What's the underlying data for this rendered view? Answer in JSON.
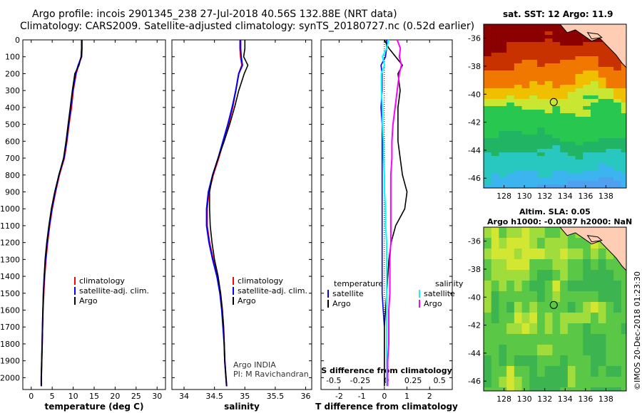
{
  "header": {
    "title_line1": "Argo profile: incois 2901345_238 27-Jul-2018 40.56S 132.88E (NRT data)",
    "title_line2": "Climatology: CARS2009. Satellite-adjusted climatology: synTS_20180727.nc (0.52d earlier)"
  },
  "sst_map": {
    "title": "sat. SST: 12 Argo: 11.9"
  },
  "sla_map": {
    "title_line1": "Altim. SLA: 0.05",
    "title_line2": "Argo h1000: -0.0087 h2000: NaN"
  },
  "credit": "©IMOS 20-Dec-2018 01:23:30",
  "colors": {
    "climatology": "#ff0000",
    "satellite": "#0000ff",
    "argo": "#000000",
    "t_sat": "#00ffff",
    "s_sat": "#00ffff",
    "s_argo": "#ff00ff"
  },
  "chart_data": [
    {
      "type": "line",
      "xlabel": "temperature (deg C)",
      "ylabel": "",
      "xlim": [
        -2,
        32
      ],
      "ylim": [
        2070,
        0
      ],
      "xticks": [
        "0",
        "5",
        "10",
        "15",
        "20",
        "25",
        "30"
      ],
      "yticks": [
        "0",
        "100",
        "200",
        "300",
        "400",
        "500",
        "600",
        "700",
        "800",
        "900",
        "1000",
        "1100",
        "1200",
        "1300",
        "1400",
        "1500",
        "1600",
        "1700",
        "1800",
        "1900",
        "2000"
      ],
      "legend": {
        "position": "lower-right",
        "entries": [
          "climatology",
          "satellite-adj. clim.",
          "Argo"
        ]
      },
      "series": [
        {
          "name": "climatology",
          "y": [
            0,
            50,
            100,
            150,
            200,
            300,
            400,
            500,
            600,
            700,
            800,
            900,
            1000,
            1100,
            1200,
            1300,
            1400,
            1500,
            1600,
            1700,
            1800,
            1900,
            2000,
            2050
          ],
          "x": [
            12.0,
            12.0,
            11.9,
            11.3,
            10.7,
            10.0,
            9.6,
            9.0,
            8.5,
            7.9,
            6.7,
            5.8,
            5.0,
            4.4,
            3.9,
            3.5,
            3.2,
            3.0,
            2.8,
            2.7,
            2.6,
            2.5,
            2.4,
            2.4
          ]
        },
        {
          "name": "satellite-adj. clim.",
          "y": [
            0,
            50,
            100,
            150,
            200,
            300,
            400,
            500,
            600,
            700,
            800,
            900,
            1000,
            1100,
            1200,
            1300,
            1400,
            1500,
            1600,
            1700,
            1800,
            1900,
            2000,
            2050
          ],
          "x": [
            12.1,
            12.1,
            12.0,
            11.2,
            10.6,
            9.9,
            9.4,
            8.9,
            8.4,
            7.8,
            6.6,
            5.7,
            4.9,
            4.3,
            3.8,
            3.4,
            3.1,
            2.9,
            2.8,
            2.7,
            2.6,
            2.5,
            2.4,
            2.4
          ]
        },
        {
          "name": "Argo",
          "y": [
            0,
            50,
            100,
            150,
            200,
            300,
            400,
            500,
            600,
            700,
            800,
            900,
            1000,
            1100,
            1200,
            1300,
            1400,
            1500,
            1600,
            1700,
            1800,
            1900,
            2000,
            2050
          ],
          "x": [
            12.0,
            12.0,
            11.9,
            11.4,
            10.4,
            9.8,
            9.3,
            8.8,
            8.3,
            7.7,
            6.6,
            5.6,
            4.8,
            4.2,
            3.7,
            3.3,
            3.1,
            2.9,
            2.8,
            2.7,
            2.6,
            2.5,
            2.4,
            2.4
          ]
        }
      ]
    },
    {
      "type": "line",
      "xlabel": "salinity",
      "xlim": [
        33.8,
        36.1
      ],
      "ylim": [
        2070,
        0
      ],
      "xticks": [
        "34",
        "34.5",
        "35",
        "35.5",
        "36"
      ],
      "legend": {
        "position": "lower-right",
        "entries": [
          "climatology",
          "satellite-adj. clim.",
          "Argo"
        ]
      },
      "annotation": [
        "Argo INDIA",
        "PI: M Ravichandran"
      ],
      "series": [
        {
          "name": "climatology",
          "y": [
            0,
            50,
            100,
            150,
            200,
            300,
            400,
            500,
            600,
            700,
            800,
            900,
            1000,
            1100,
            1200,
            1300,
            1400,
            1500,
            1600,
            1700,
            1800,
            1900,
            2000,
            2050
          ],
          "x": [
            34.92,
            34.92,
            34.93,
            34.95,
            34.9,
            34.85,
            34.8,
            34.73,
            34.65,
            34.57,
            34.48,
            34.41,
            34.38,
            34.38,
            34.42,
            34.48,
            34.55,
            34.6,
            34.63,
            34.65,
            34.66,
            34.67,
            34.69,
            34.7
          ]
        },
        {
          "name": "satellite-adj. clim.",
          "y": [
            0,
            50,
            100,
            150,
            200,
            300,
            400,
            500,
            600,
            700,
            800,
            900,
            1000,
            1100,
            1200,
            1300,
            1400,
            1500,
            1600,
            1700,
            1800,
            1900,
            2000,
            2050
          ],
          "x": [
            34.93,
            34.93,
            34.94,
            34.96,
            34.9,
            34.85,
            34.79,
            34.72,
            34.64,
            34.56,
            34.47,
            34.4,
            34.37,
            34.37,
            34.41,
            34.47,
            34.54,
            34.59,
            34.62,
            34.64,
            34.66,
            34.67,
            34.69,
            34.7
          ]
        },
        {
          "name": "Argo",
          "y": [
            0,
            50,
            100,
            150,
            200,
            300,
            400,
            500,
            600,
            700,
            800,
            900,
            1000,
            1100,
            1200,
            1300,
            1400,
            1500,
            1600,
            1700,
            1800,
            1900,
            2000,
            2050
          ],
          "x": [
            35.0,
            35.0,
            34.98,
            35.05,
            34.99,
            34.9,
            34.83,
            34.75,
            34.66,
            34.56,
            34.47,
            34.42,
            34.42,
            34.43,
            34.46,
            34.5,
            34.56,
            34.6,
            34.63,
            34.65,
            34.66,
            34.67,
            34.69,
            34.7
          ]
        }
      ]
    },
    {
      "type": "line",
      "xlabel": "T difference from climatology",
      "xlabel2": "S difference from climatology",
      "xlim": [
        -2.8,
        3.0
      ],
      "ylim": [
        2070,
        0
      ],
      "xticks": [
        "-2",
        "-1",
        "0",
        "1",
        "2"
      ],
      "xticks2": [
        "-0.5",
        "-0.25",
        "0",
        "0.25",
        "0.5"
      ],
      "legend": {
        "temperature_header": "temperature",
        "salinity_header": "salinity",
        "entries_t": [
          "satellite",
          "Argo"
        ],
        "entries_s": [
          "satellite",
          "Argo"
        ]
      },
      "series": [
        {
          "name": "T satellite",
          "y": [
            0,
            50,
            100,
            150,
            200,
            300,
            400,
            500,
            600,
            700,
            800,
            900,
            1000,
            1100,
            1200,
            1300,
            1400,
            1500,
            1600,
            1700,
            1800,
            1900,
            2000,
            2050
          ],
          "x": [
            0.1,
            0.1,
            0.05,
            -0.15,
            -0.1,
            -0.1,
            -0.15,
            -0.1,
            -0.1,
            -0.1,
            -0.1,
            -0.1,
            -0.1,
            -0.1,
            -0.1,
            -0.1,
            -0.1,
            -0.1,
            -0.05,
            0.0,
            0.0,
            0.0,
            0.0,
            0.0
          ]
        },
        {
          "name": "T Argo",
          "y": [
            0,
            50,
            100,
            150,
            200,
            300,
            400,
            500,
            600,
            700,
            800,
            900,
            1000,
            1100,
            1200,
            1300,
            1400,
            1500,
            1600,
            1700,
            1800,
            1900,
            2000,
            2050
          ],
          "x": [
            0.0,
            0.2,
            0.5,
            0.8,
            0.6,
            0.7,
            0.6,
            0.6,
            0.6,
            0.7,
            0.8,
            1.0,
            0.9,
            0.5,
            0.3,
            0.2,
            0.15,
            0.1,
            0.05,
            0.0,
            0.0,
            0.0,
            0.0,
            0.0
          ]
        },
        {
          "name": "S satellite",
          "y": [
            0,
            50,
            100,
            150,
            200,
            300,
            400,
            500,
            600,
            700,
            800,
            900,
            1000,
            1100,
            1200,
            1300,
            1400,
            1500,
            1600,
            1700,
            1800,
            1900,
            2000,
            2050
          ],
          "x": [
            0.02,
            0.0,
            -0.04,
            -0.02,
            -0.05,
            -0.05,
            -0.04,
            -0.04,
            -0.03,
            -0.03,
            -0.02,
            -0.02,
            -0.01,
            -0.01,
            0.0,
            0.0,
            0.0,
            0.0,
            0.0,
            0.0,
            0.0,
            0.0,
            0.0,
            0.0
          ]
        },
        {
          "name": "S Argo",
          "y": [
            0,
            50,
            100,
            150,
            200,
            300,
            400,
            500,
            600,
            700,
            800,
            900,
            1000,
            1100,
            1200,
            1300,
            1400,
            1500,
            1600,
            1700,
            1800,
            1900,
            2000,
            2050
          ],
          "x": [
            0.1,
            0.13,
            0.12,
            0.14,
            0.12,
            0.1,
            0.08,
            0.06,
            0.05,
            0.05,
            0.04,
            0.04,
            0.04,
            0.04,
            0.04,
            0.03,
            0.03,
            0.03,
            0.02,
            0.02,
            0.02,
            0.01,
            0.01,
            0.01
          ]
        }
      ]
    },
    {
      "type": "heatmap",
      "title": "sat. SST: 12 Argo: 11.9",
      "xlim": [
        126,
        140
      ],
      "ylim": [
        -46.7,
        -35
      ],
      "xticks": [
        "128",
        "130",
        "132",
        "134",
        "136",
        "138"
      ],
      "yticks": [
        "-36",
        "-38",
        "-40",
        "-42",
        "-44",
        "-46"
      ],
      "marker": {
        "lon": 132.88,
        "lat": -40.56
      }
    },
    {
      "type": "heatmap",
      "title": "Altim. SLA: 0.05",
      "xlim": [
        126,
        140
      ],
      "ylim": [
        -46.7,
        -35
      ],
      "xticks": [
        "128",
        "130",
        "132",
        "134",
        "136",
        "138"
      ],
      "yticks": [
        "-36",
        "-38",
        "-40",
        "-42",
        "-44",
        "-46"
      ],
      "marker": {
        "lon": 132.88,
        "lat": -40.56
      }
    }
  ]
}
